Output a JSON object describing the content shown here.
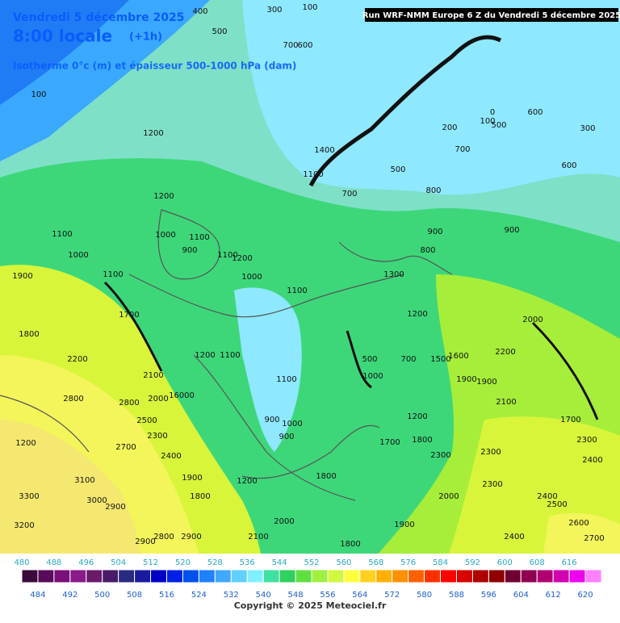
{
  "header": {
    "date": "Vendredi 5 décembre 2025",
    "time": "8:00 locale",
    "offset": "(+1h)",
    "field": "Isotherme 0°c (m) et épaisseur 500-1000 hPa (dam)",
    "run": "Run WRF-NMM Europe 6 Z du Vendredi 5 décembre 2025"
  },
  "contour_labels": [
    400,
    300,
    100,
    500,
    700,
    600,
    100,
    1200,
    1200,
    1100,
    1000,
    1100,
    900,
    1000,
    1100,
    1200,
    1000,
    1900,
    1100,
    1100,
    1700,
    1800,
    2200,
    1200,
    1100,
    2100,
    16000,
    2800,
    2800,
    2000,
    2500,
    2300,
    1200,
    2700,
    2400,
    1900,
    3100,
    1800,
    3000,
    2900,
    3300,
    3200,
    2800,
    2900,
    2900,
    1200,
    1100,
    1000,
    900,
    900,
    2000,
    2100,
    1800,
    1800,
    1900,
    2000,
    1800,
    1700,
    1200,
    1900,
    1900,
    2100,
    2200,
    2000,
    1500,
    1600,
    700,
    500,
    1000,
    1200,
    1300,
    900,
    900,
    800,
    800,
    700,
    500,
    600,
    300,
    200,
    600,
    500,
    100,
    0,
    700,
    1100,
    1400,
    1700,
    2300,
    2400,
    2300,
    2400,
    2500,
    2600,
    2700,
    2400,
    2300,
    2300
  ],
  "colorbar": {
    "labels": [
      480,
      484,
      488,
      492,
      496,
      500,
      504,
      508,
      512,
      516,
      520,
      524,
      528,
      532,
      536,
      540,
      544,
      548,
      552,
      556,
      560,
      564,
      568,
      572,
      576,
      580,
      584,
      588,
      592,
      596,
      600,
      604,
      608,
      612,
      616,
      620
    ],
    "colors": [
      "#3a0a3a",
      "#5a0a5a",
      "#7a107a",
      "#8a1a8a",
      "#6a1a6a",
      "#4a1a6a",
      "#2a2a80",
      "#1a1aa0",
      "#0000c8",
      "#0020e8",
      "#0050f0",
      "#2080ff",
      "#40a8ff",
      "#60d0ff",
      "#80f0ff",
      "#40e0a0",
      "#30d060",
      "#60e040",
      "#a0f040",
      "#d0f840",
      "#ffff40",
      "#ffd020",
      "#ffb000",
      "#ff9000",
      "#ff6000",
      "#ff3000",
      "#ff0000",
      "#d80000",
      "#b00000",
      "#900000",
      "#700030",
      "#900050",
      "#b00070",
      "#d000b0",
      "#f000f0",
      "#ff80ff"
    ]
  },
  "copyright": "Copyright © 2025 Meteociel.fr"
}
